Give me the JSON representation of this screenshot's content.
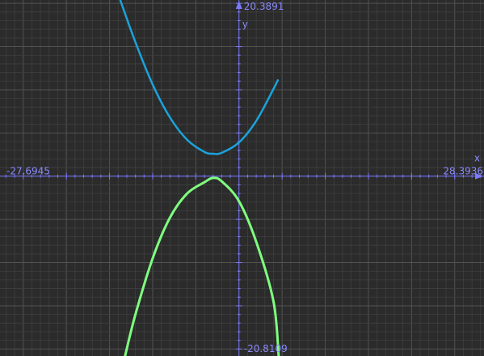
{
  "chart_data": {
    "type": "line",
    "title": "",
    "xlabel": "x",
    "ylabel": "y",
    "xlim": [
      -27.6945,
      28.3936
    ],
    "ylim": [
      -20.8109,
      20.3891
    ],
    "grid": true,
    "tick_labels": {
      "x_min": "-27.6945",
      "x_max": "28.3936",
      "y_max": "20.3891",
      "y_min": "-20.8109"
    },
    "series": [
      {
        "color": "#1aa3dc",
        "x": [
          -13.8,
          -12,
          -10,
          -8,
          -6,
          -4,
          -3,
          -2,
          0,
          2,
          4,
          4.5
        ],
        "y": [
          20.5,
          15.5,
          10.6,
          6.8,
          4.2,
          2.8,
          2.6,
          2.7,
          3.9,
          6.4,
          10.1,
          11.1
        ],
        "note_shape": "upward parabola, vertex near (-4, 2)"
      },
      {
        "color": "#7fff7f",
        "x": [
          -13.2,
          -12,
          -10,
          -8,
          -6,
          -4,
          -3,
          -2,
          0,
          2,
          4,
          4.6
        ],
        "y": [
          -20.8,
          -16.0,
          -9.5,
          -4.8,
          -2.0,
          -0.7,
          -0.2,
          -0.6,
          -2.9,
          -7.6,
          -14.5,
          -20.8
        ],
        "note_shape": "downward parabola, vertex near (-4, -2.1)"
      }
    ],
    "colors": {
      "background": "#2b2b2b",
      "grid_minor": "#3f3f3f",
      "grid_major": "#525252",
      "axis": "#7b7bff",
      "text": "#8a8aff"
    }
  }
}
